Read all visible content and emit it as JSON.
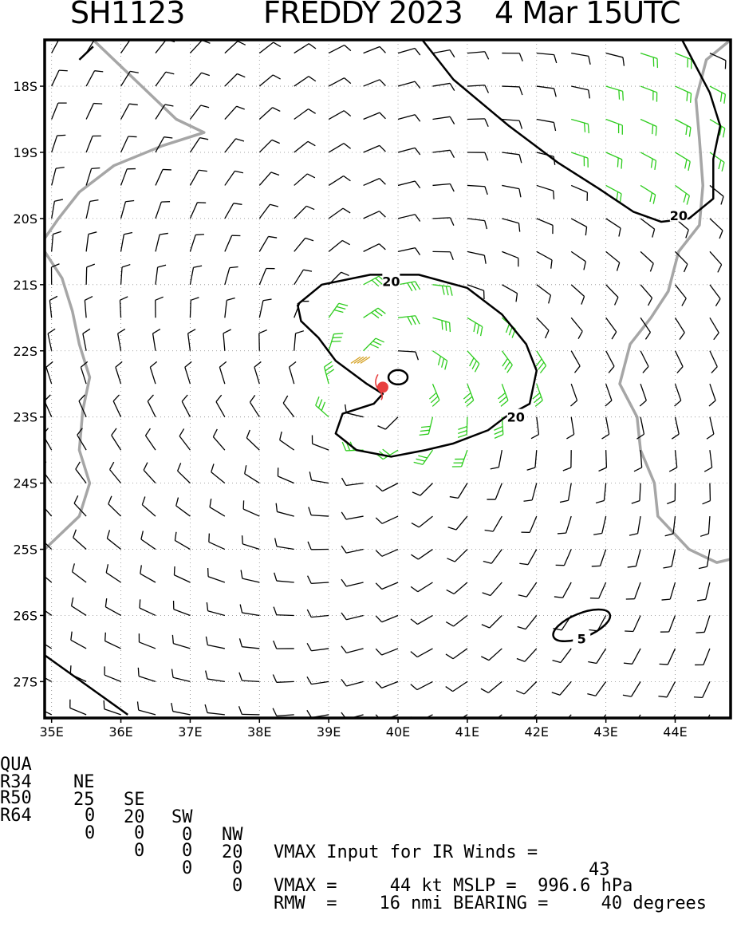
{
  "title": {
    "storm_id": "SH1123",
    "storm_name_year": "FREDDY 2023",
    "datetime": "4 Mar 15UTC"
  },
  "chart_data": {
    "type": "wind-barb map",
    "x_ticks": [
      "35E",
      "36E",
      "37E",
      "38E",
      "39E",
      "40E",
      "41E",
      "42E",
      "43E",
      "44E"
    ],
    "y_ticks": [
      "18S",
      "19S",
      "20S",
      "21S",
      "22S",
      "23S",
      "24S",
      "25S",
      "26S",
      "27S"
    ],
    "xlim": [
      34.9,
      44.8
    ],
    "ylim": [
      -27.55,
      -17.3
    ],
    "grid": true,
    "center": {
      "lon": 39.78,
      "lat": -22.55
    },
    "contour_labels": [
      {
        "text": "20",
        "lon": 39.9,
        "lat": -20.95
      },
      {
        "text": "20",
        "lon": 41.7,
        "lat": -23.0
      },
      {
        "text": "20",
        "lon": 44.05,
        "lat": -19.95
      },
      {
        "text": "5",
        "lon": 42.65,
        "lat": -26.35
      }
    ],
    "colors": {
      "over_threshold": "#2ecc1e",
      "under_threshold": "#000000",
      "coast": "#a6a6a6",
      "center": "#e84040",
      "core": "#d4a020"
    }
  },
  "info": {
    "row1": {
      "label": "QUA",
      "ne": "NE",
      "se": "SE",
      "sw": "SW",
      "nw": "NW",
      "text": "VMAX Input for IR Winds =",
      "value": "43"
    },
    "row2": {
      "label": "R34",
      "ne": "25",
      "se": "20",
      "sw": "0",
      "nw": "20"
    },
    "row3": {
      "label": "R50",
      "ne": "0",
      "se": "0",
      "sw": "0",
      "nw": "0",
      "text": "VMAX =     44 kt MSLP =  996.6 hPa"
    },
    "row4": {
      "label": "R64",
      "ne": "0",
      "se": "0",
      "sw": "0",
      "nw": "0",
      "text": "RMW  =    16 nmi BEARING =     40 degrees"
    }
  }
}
